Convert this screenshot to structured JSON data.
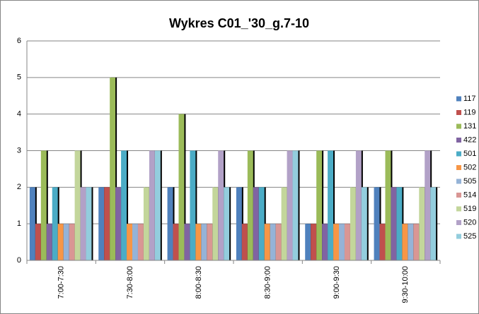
{
  "chart_data": {
    "type": "bar",
    "title": "Wykres C01_'30_g.7-10",
    "categories": [
      "7:00-7:30",
      "7:30-8:00",
      "8:00-8:30",
      "8:30-9:00",
      "9:00-9:30",
      "9:30-10:00"
    ],
    "series": [
      {
        "name": "117",
        "color": "#4f81bd",
        "values": [
          2,
          2,
          2,
          2,
          1,
          2
        ]
      },
      {
        "name": "119",
        "color": "#c0504d",
        "values": [
          1,
          2,
          1,
          1,
          1,
          1
        ]
      },
      {
        "name": "131",
        "color": "#9bbb59",
        "values": [
          3,
          5,
          4,
          3,
          3,
          3
        ]
      },
      {
        "name": "422",
        "color": "#8064a2",
        "values": [
          1,
          2,
          1,
          2,
          1,
          2
        ]
      },
      {
        "name": "501",
        "color": "#4bacc6",
        "values": [
          2,
          3,
          3,
          2,
          3,
          2
        ]
      },
      {
        "name": "502",
        "color": "#f79646",
        "values": [
          1,
          1,
          1,
          1,
          1,
          1
        ]
      },
      {
        "name": "505",
        "color": "#95b3d7",
        "values": [
          1,
          1,
          1,
          1,
          1,
          1
        ]
      },
      {
        "name": "514",
        "color": "#d99694",
        "values": [
          1,
          1,
          1,
          1,
          1,
          1
        ]
      },
      {
        "name": "519",
        "color": "#c3d69b",
        "values": [
          3,
          2,
          2,
          2,
          2,
          2
        ]
      },
      {
        "name": "520",
        "color": "#b2a1c7",
        "values": [
          2,
          3,
          3,
          3,
          3,
          3
        ]
      },
      {
        "name": "525",
        "color": "#93cddd",
        "values": [
          2,
          3,
          2,
          3,
          2,
          2
        ]
      }
    ],
    "ylim": [
      0,
      6
    ],
    "yticks": [
      0,
      1,
      2,
      3,
      4,
      5,
      6
    ],
    "grid": true,
    "legend": "right"
  }
}
